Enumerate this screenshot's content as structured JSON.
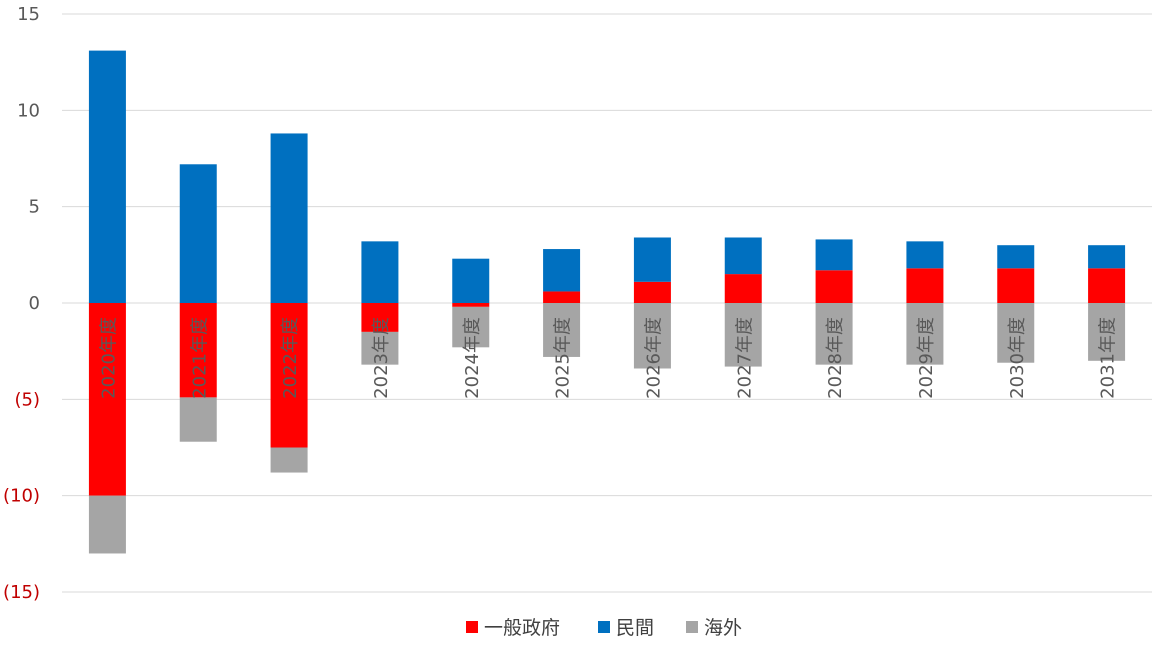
{
  "colors": {
    "一般政府": "#ff0000",
    "民間": "#0070c0",
    "海外": "#a5a5a5",
    "negative_tick": "#c00000",
    "positive_tick": "#595959"
  },
  "chart_data": {
    "type": "bar",
    "stacked": true,
    "categories": [
      "2020年度",
      "2021年度",
      "2022年度",
      "2023年度",
      "2024年度",
      "2025年度",
      "2026年度",
      "2027年度",
      "2028年度",
      "2029年度",
      "2030年度",
      "2031年度"
    ],
    "series": [
      {
        "name": "一般政府",
        "values": [
          -10.0,
          -4.9,
          -7.5,
          -1.5,
          -0.2,
          0.6,
          1.1,
          1.5,
          1.7,
          1.8,
          1.8,
          1.8
        ]
      },
      {
        "name": "民間",
        "values": [
          13.1,
          7.2,
          8.8,
          3.2,
          2.3,
          2.2,
          2.3,
          1.9,
          1.6,
          1.4,
          1.2,
          1.2
        ]
      },
      {
        "name": "海外",
        "values": [
          -3.0,
          -2.3,
          -1.3,
          -1.7,
          -2.1,
          -2.8,
          -3.4,
          -3.3,
          -3.2,
          -3.2,
          -3.1,
          -3.0
        ]
      }
    ],
    "yticks": [
      15,
      10,
      5,
      0,
      -5,
      -10,
      -15
    ],
    "ytick_labels": [
      "15",
      "10",
      "5",
      "0",
      "(5)",
      "(10)",
      "(15)"
    ],
    "ylim": [
      -15,
      15
    ],
    "grid": true,
    "legend_position": "bottom-center",
    "xlabel": "",
    "ylabel": "",
    "title": ""
  }
}
